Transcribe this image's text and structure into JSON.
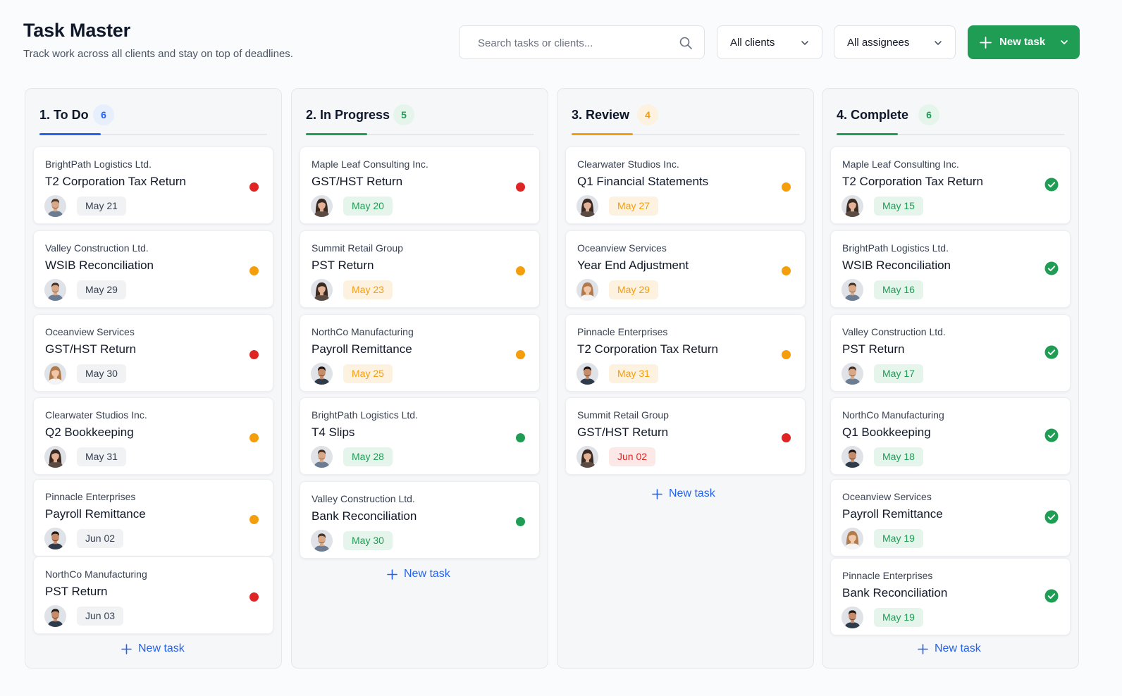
{
  "header": {
    "title": "Task Master",
    "subtitle": "Track work across all clients and stay on top of deadlines."
  },
  "search": {
    "placeholder": "Search tasks or clients...",
    "value": ""
  },
  "filters": {
    "clients": "All clients",
    "assignees": "All assignees"
  },
  "new_task_button": "New task",
  "colors": {
    "accent_green": "#1f9d55",
    "accent_blue": "#2563eb",
    "accent_orange": "#f59e0b",
    "accent_red": "#e02424"
  },
  "columns": [
    {
      "title": "1. To Do",
      "count": "6",
      "accent": "blue",
      "add_label": "New task",
      "cards": [
        {
          "client": "BrightPath Logistics Ltd.",
          "title": "T2 Corporation Tax Return",
          "date": "May 21",
          "date_style": "gray",
          "status": "red",
          "avatar": "man"
        },
        {
          "client": "Valley Construction Ltd.",
          "title": "WSIB Reconciliation",
          "date": "May 29",
          "date_style": "gray",
          "status": "orange",
          "avatar": "man"
        },
        {
          "client": "Oceanview Services",
          "title": "GST/HST Return",
          "date": "May 30",
          "date_style": "gray",
          "status": "red",
          "avatar": "woman-light"
        },
        {
          "client": "Clearwater Studios Inc.",
          "title": "Q2 Bookkeeping",
          "date": "May 31",
          "date_style": "gray",
          "status": "orange",
          "avatar": "woman"
        },
        {
          "client": "Pinnacle Enterprises",
          "title": "Payroll Remittance",
          "date": "Jun 02",
          "date_style": "gray",
          "status": "orange",
          "avatar": "man-dark"
        },
        {
          "client": "NorthCo Manufacturing",
          "title": "PST Return",
          "date": "Jun 03",
          "date_style": "gray",
          "status": "red",
          "avatar": "man-dark"
        }
      ]
    },
    {
      "title": "2. In Progress",
      "count": "5",
      "accent": "green",
      "add_label": "New task",
      "cards": [
        {
          "client": "Maple Leaf Consulting Inc.",
          "title": "GST/HST Return",
          "date": "May 20",
          "date_style": "green",
          "status": "red",
          "avatar": "woman"
        },
        {
          "client": "Summit Retail Group",
          "title": "PST Return",
          "date": "May 23",
          "date_style": "orange",
          "status": "orange",
          "avatar": "woman"
        },
        {
          "client": "NorthCo Manufacturing",
          "title": "Payroll Remittance",
          "date": "May 25",
          "date_style": "orange",
          "status": "orange",
          "avatar": "man-dark"
        },
        {
          "client": "BrightPath Logistics Ltd.",
          "title": "T4 Slips",
          "date": "May 28",
          "date_style": "green",
          "status": "green",
          "avatar": "man"
        },
        {
          "client": "Valley Construction Ltd.",
          "title": "Bank Reconciliation",
          "date": "May 30",
          "date_style": "green",
          "status": "green",
          "avatar": "man"
        }
      ]
    },
    {
      "title": "3. Review",
      "count": "4",
      "accent": "orange",
      "add_label": "New task",
      "cards": [
        {
          "client": "Clearwater Studios Inc.",
          "title": "Q1 Financial Statements",
          "date": "May 27",
          "date_style": "orange",
          "status": "orange",
          "avatar": "woman"
        },
        {
          "client": "Oceanview Services",
          "title": "Year End Adjustment",
          "date": "May 29",
          "date_style": "orange",
          "status": "orange",
          "avatar": "woman-light"
        },
        {
          "client": "Pinnacle Enterprises",
          "title": "T2 Corporation Tax Return",
          "date": "May 31",
          "date_style": "orange",
          "status": "orange",
          "avatar": "man-dark"
        },
        {
          "client": "Summit Retail Group",
          "title": "GST/HST Return",
          "date": "Jun 02",
          "date_style": "red",
          "status": "red",
          "avatar": "woman"
        }
      ]
    },
    {
      "title": "4. Complete",
      "count": "6",
      "accent": "green",
      "add_label": "New task",
      "cards": [
        {
          "client": "Maple Leaf Consulting Inc.",
          "title": "T2 Corporation Tax Return",
          "date": "May 15",
          "date_style": "green",
          "status": "done",
          "avatar": "woman"
        },
        {
          "client": "BrightPath Logistics Ltd.",
          "title": "WSIB Reconciliation",
          "date": "May 16",
          "date_style": "green",
          "status": "done",
          "avatar": "man"
        },
        {
          "client": "Valley Construction Ltd.",
          "title": "PST Return",
          "date": "May 17",
          "date_style": "green",
          "status": "done",
          "avatar": "man"
        },
        {
          "client": "NorthCo Manufacturing",
          "title": "Q1 Bookkeeping",
          "date": "May 18",
          "date_style": "green",
          "status": "done",
          "avatar": "man-dark"
        },
        {
          "client": "Oceanview Services",
          "title": "Payroll Remittance",
          "date": "May 19",
          "date_style": "green",
          "status": "done",
          "avatar": "woman-light"
        },
        {
          "client": "Pinnacle Enterprises",
          "title": "Bank Reconciliation",
          "date": "May 19",
          "date_style": "green",
          "status": "done",
          "avatar": "man-dark"
        }
      ]
    }
  ]
}
